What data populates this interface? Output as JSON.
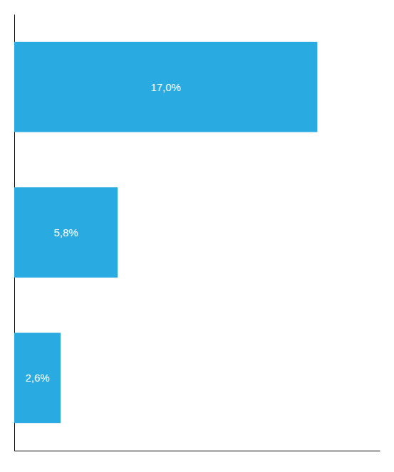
{
  "chart_data": {
    "type": "bar",
    "orientation": "horizontal",
    "categories": [
      null,
      null,
      null
    ],
    "values": [
      17.0,
      5.8,
      2.6
    ],
    "value_labels": [
      "17,0%",
      "5,8%",
      "2,6%"
    ],
    "data_labels": true,
    "color": "#29ABE2",
    "xlim": [
      0,
      20.5
    ],
    "tick_labels": false
  }
}
